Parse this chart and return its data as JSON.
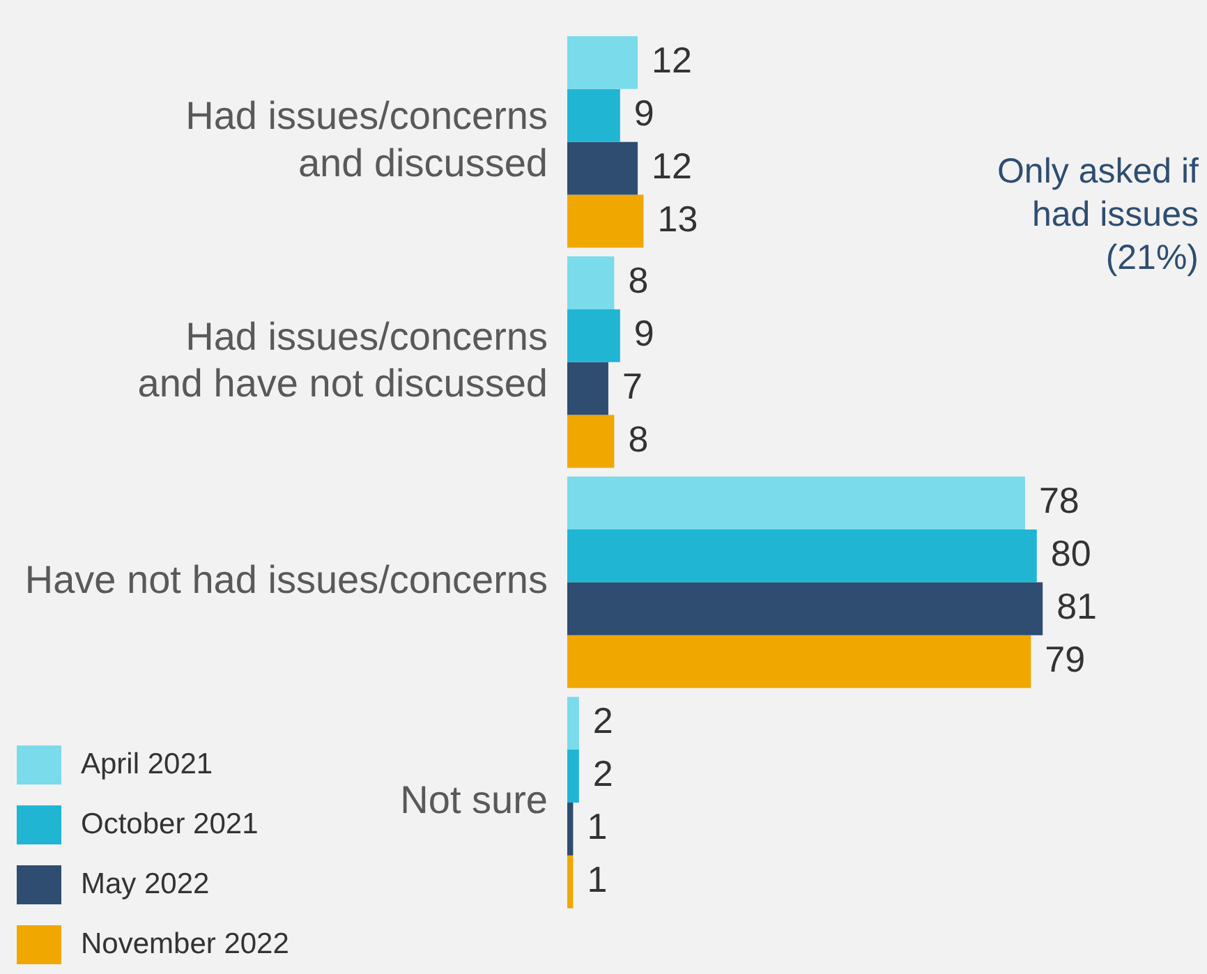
{
  "chart_data": {
    "type": "bar",
    "orientation": "horizontal",
    "categories": [
      "Had issues/concerns and discussed",
      "Had issues/concerns and have not discussed",
      "Have not had issues/concerns",
      "Not sure"
    ],
    "series": [
      {
        "name": "April 2021",
        "color": "#7adbea",
        "values": [
          12,
          8,
          78,
          2
        ]
      },
      {
        "name": "October 2021",
        "color": "#1fb5d3",
        "values": [
          9,
          9,
          80,
          2
        ]
      },
      {
        "name": "May 2022",
        "color": "#2e4d70",
        "values": [
          12,
          7,
          81,
          1
        ]
      },
      {
        "name": "November 2022",
        "color": "#f0a800",
        "values": [
          13,
          8,
          79,
          1
        ]
      }
    ],
    "data_labels": true,
    "legend": "bottom left",
    "annotations": [
      "Only asked if had issues (21%)"
    ]
  }
}
